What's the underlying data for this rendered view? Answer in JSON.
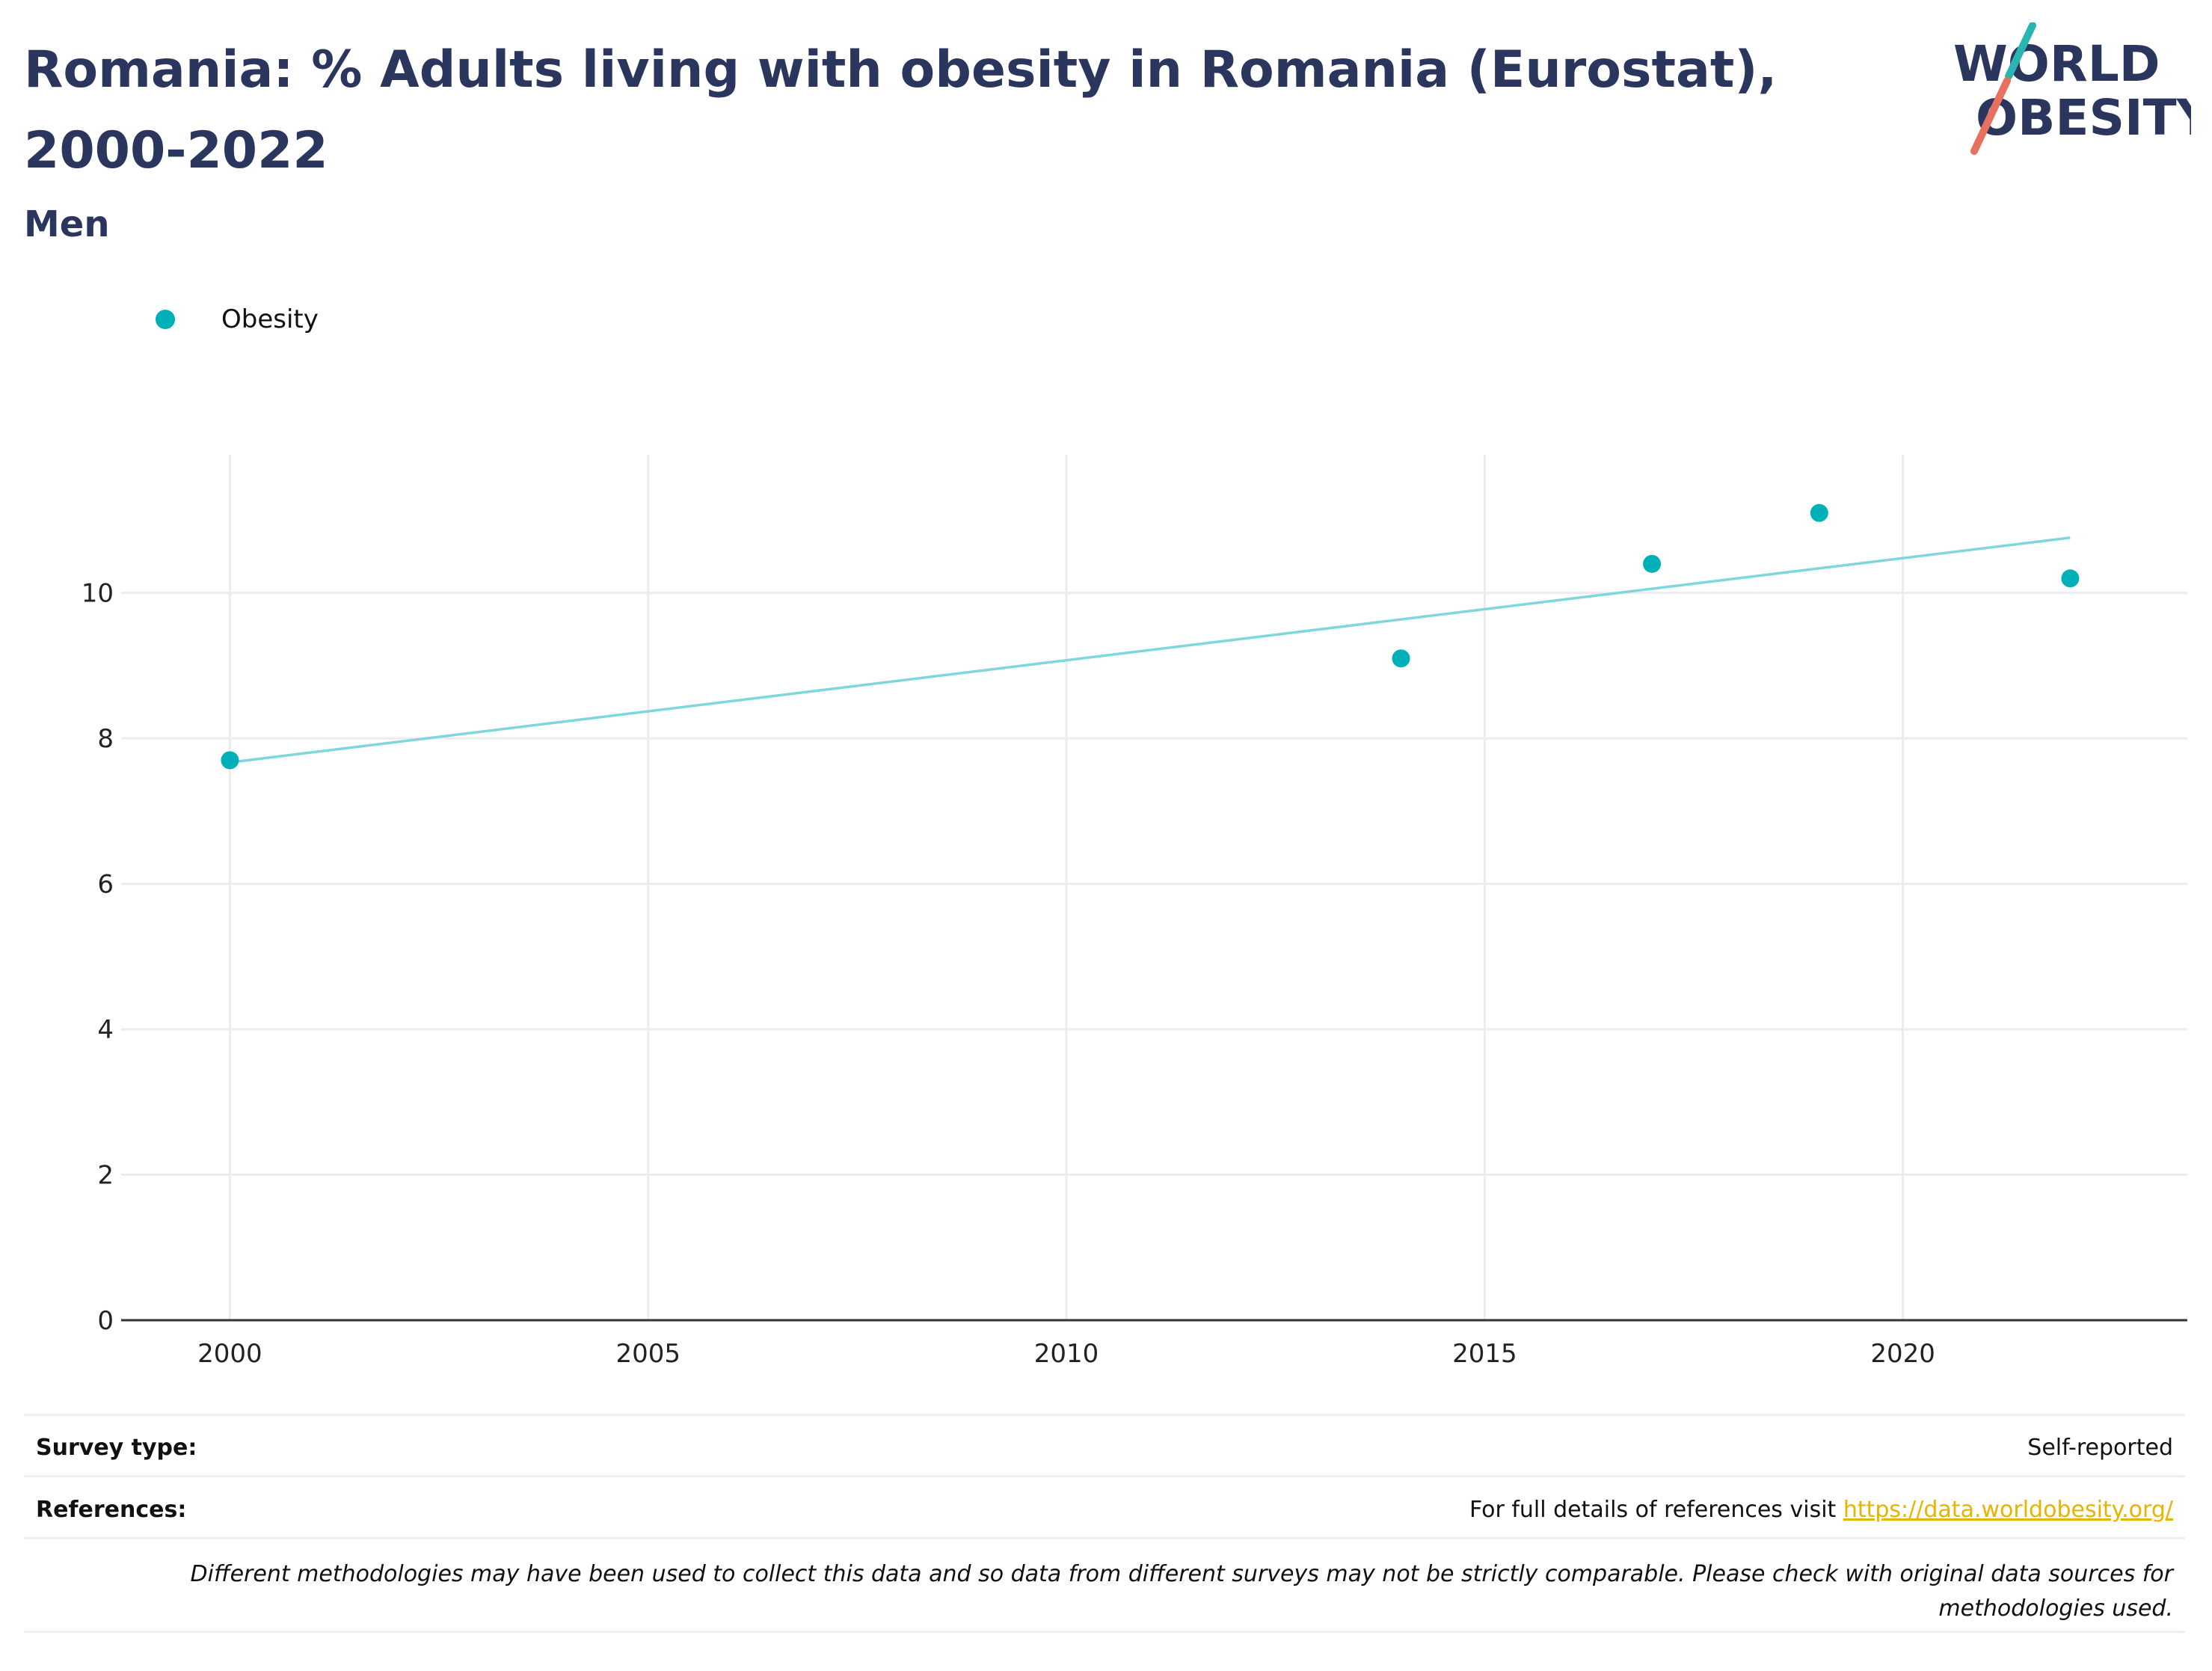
{
  "header": {
    "title": "Romania: % Adults living with obesity in Romania (Eurostat), 2000-2022",
    "subtitle": "Men"
  },
  "logo": {
    "line1": "WORLD",
    "line2": "OBESITY",
    "accent_teal": "#2bb5b0",
    "accent_coral": "#e8705e",
    "text_color": "#2b365f"
  },
  "legend": {
    "items": [
      {
        "label": "Obesity",
        "color": "#00b0b9"
      }
    ]
  },
  "chart_data": {
    "type": "scatter",
    "title": "Romania: % Adults living with obesity in Romania (Eurostat), 2000-2022",
    "subtitle": "Men",
    "xlabel": "",
    "ylabel": "",
    "xlim": [
      1998.7,
      2023.4
    ],
    "ylim": [
      0,
      11.9
    ],
    "x_ticks": [
      2000,
      2005,
      2010,
      2015,
      2020
    ],
    "y_ticks": [
      0,
      2,
      4,
      6,
      8,
      10
    ],
    "grid": true,
    "legend_position": "top-left",
    "series": [
      {
        "name": "Obesity",
        "color": "#00b0b9",
        "points": [
          {
            "x": 2000,
            "y": 7.7
          },
          {
            "x": 2014,
            "y": 9.1
          },
          {
            "x": 2017,
            "y": 10.4
          },
          {
            "x": 2019,
            "y": 11.1
          },
          {
            "x": 2022,
            "y": 10.2
          }
        ]
      }
    ],
    "trendline": {
      "color": "#7fd6dc",
      "points": [
        {
          "x": 2000,
          "y": 7.67
        },
        {
          "x": 2022,
          "y": 10.76
        }
      ]
    }
  },
  "footer": {
    "survey_type_label": "Survey type:",
    "survey_type_value": "Self-reported",
    "references_label": "References:",
    "references_text": "For full details of references visit ",
    "references_link": "https://data.worldobesity.org/",
    "note": "Different methodologies may have been used to collect this data and so data from different surveys may not be strictly comparable. Please check with original data sources for methodologies used."
  }
}
